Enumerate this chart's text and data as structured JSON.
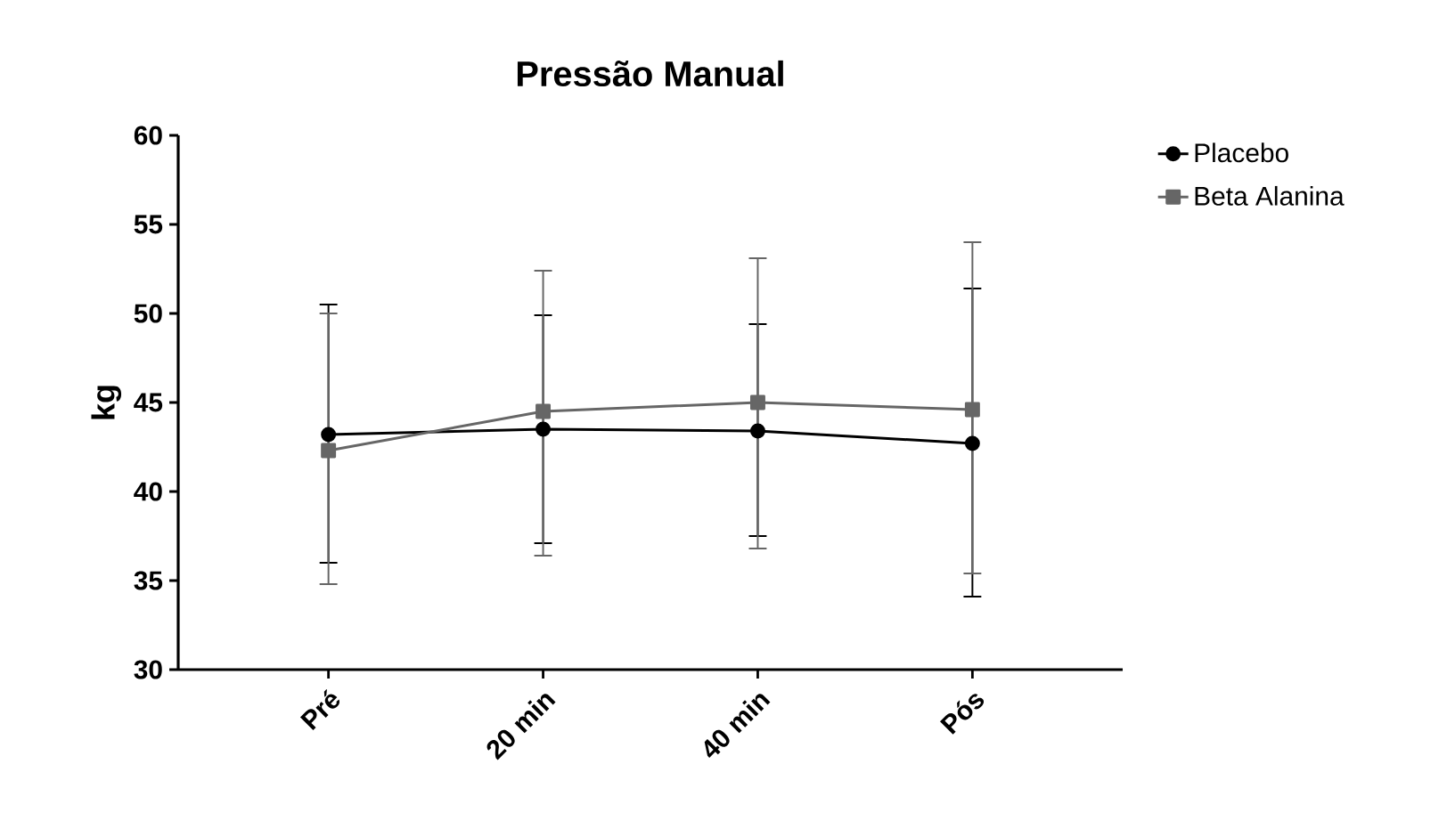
{
  "chart_data": {
    "type": "line",
    "title": "Pressão Manual",
    "ylabel": "kg",
    "categories": [
      "Pré",
      "20 min",
      "40 min",
      "Pós"
    ],
    "ylim": [
      30,
      60
    ],
    "yticks": [
      30,
      35,
      40,
      45,
      50,
      55,
      60
    ],
    "grid": false,
    "legend": "top right",
    "series": [
      {
        "name": "Placebo",
        "color": "#000000",
        "marker": "circle",
        "values": [
          43.2,
          43.5,
          43.4,
          42.7
        ],
        "errors": [
          [
            36.0,
            50.5
          ],
          [
            37.1,
            49.9
          ],
          [
            37.5,
            49.4
          ],
          [
            34.1,
            51.4
          ]
        ]
      },
      {
        "name": "Beta Alanina",
        "color": "#666666",
        "marker": "square",
        "values": [
          42.3,
          44.5,
          45.0,
          44.6
        ],
        "errors": [
          [
            34.8,
            50.0
          ],
          [
            36.4,
            52.4
          ],
          [
            36.8,
            53.1
          ],
          [
            35.4,
            54.0
          ]
        ]
      }
    ]
  }
}
